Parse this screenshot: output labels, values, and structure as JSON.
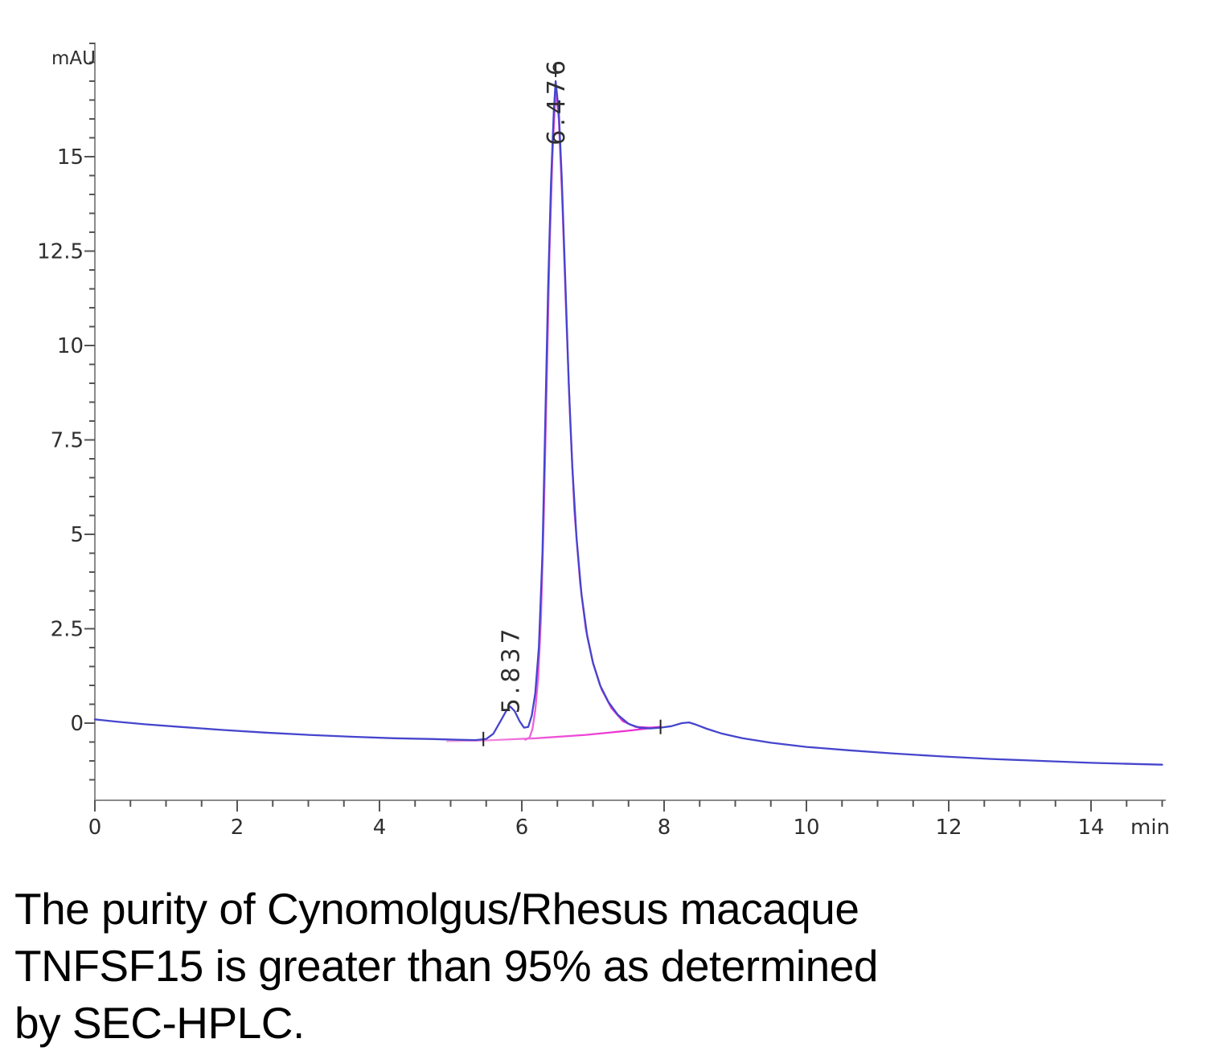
{
  "chart_data": {
    "type": "line",
    "xlabel": "min",
    "ylabel": "mAU",
    "xlim": [
      0,
      15.05
    ],
    "ylim": [
      -2,
      18.1
    ],
    "grid": false,
    "legend": "none",
    "x_major_ticks": [
      0,
      2,
      4,
      6,
      8,
      10,
      12,
      14
    ],
    "x_minor_step": 0.5,
    "y_major_ticks": [
      0,
      2.5,
      5,
      7.5,
      10,
      12.5,
      15
    ],
    "y_minor_step": 0.5,
    "peaks": [
      {
        "label": "5.837",
        "retention_time_min": 5.837,
        "height_mau": 0.44,
        "label_bottom_mau": 0.25
      },
      {
        "label": "6.476",
        "retention_time_min": 6.476,
        "height_mau": 17.0,
        "label_bottom_mau": 15.3
      }
    ],
    "integration_marks": [
      {
        "t_min": 5.46,
        "mau": -0.42
      },
      {
        "t_min": 7.95,
        "mau": -0.1
      },
      {
        "t_min": 6.476,
        "mau": 17.3
      }
    ],
    "series": [
      {
        "name": "uv-absorbance-trace",
        "color": "#4545cd",
        "points": [
          [
            0,
            0.1
          ],
          [
            0.3,
            0.04
          ],
          [
            0.7,
            -0.03
          ],
          [
            1.2,
            -0.1
          ],
          [
            1.8,
            -0.18
          ],
          [
            2.4,
            -0.25
          ],
          [
            3.0,
            -0.31
          ],
          [
            3.6,
            -0.36
          ],
          [
            4.2,
            -0.4
          ],
          [
            4.7,
            -0.42
          ],
          [
            5.1,
            -0.44
          ],
          [
            5.35,
            -0.45
          ],
          [
            5.5,
            -0.42
          ],
          [
            5.6,
            -0.28
          ],
          [
            5.7,
            0.05
          ],
          [
            5.78,
            0.32
          ],
          [
            5.837,
            0.44
          ],
          [
            5.9,
            0.32
          ],
          [
            5.97,
            0.05
          ],
          [
            6.03,
            -0.12
          ],
          [
            6.09,
            -0.1
          ],
          [
            6.14,
            0.2
          ],
          [
            6.19,
            0.8
          ],
          [
            6.24,
            2.0
          ],
          [
            6.29,
            4.5
          ],
          [
            6.33,
            8.0
          ],
          [
            6.37,
            11.5
          ],
          [
            6.41,
            14.3
          ],
          [
            6.45,
            16.2
          ],
          [
            6.476,
            17.0
          ],
          [
            6.52,
            16.2
          ],
          [
            6.56,
            14.5
          ],
          [
            6.61,
            11.8
          ],
          [
            6.66,
            9.0
          ],
          [
            6.71,
            6.8
          ],
          [
            6.77,
            4.9
          ],
          [
            6.84,
            3.4
          ],
          [
            6.92,
            2.3
          ],
          [
            7.0,
            1.6
          ],
          [
            7.1,
            1.0
          ],
          [
            7.22,
            0.55
          ],
          [
            7.35,
            0.22
          ],
          [
            7.5,
            -0.02
          ],
          [
            7.65,
            -0.12
          ],
          [
            7.8,
            -0.14
          ],
          [
            7.95,
            -0.12
          ],
          [
            8.1,
            -0.08
          ],
          [
            8.25,
            0.0
          ],
          [
            8.35,
            0.02
          ],
          [
            8.45,
            -0.04
          ],
          [
            8.6,
            -0.15
          ],
          [
            8.8,
            -0.27
          ],
          [
            9.1,
            -0.4
          ],
          [
            9.5,
            -0.52
          ],
          [
            10.0,
            -0.63
          ],
          [
            10.6,
            -0.72
          ],
          [
            11.2,
            -0.8
          ],
          [
            11.9,
            -0.88
          ],
          [
            12.6,
            -0.95
          ],
          [
            13.3,
            -1.0
          ],
          [
            14.0,
            -1.05
          ],
          [
            14.6,
            -1.08
          ],
          [
            15.0,
            -1.1
          ]
        ]
      },
      {
        "name": "integration-baseline",
        "color": "#e93fd3",
        "points": [
          [
            4.95,
            -0.48
          ],
          [
            5.46,
            -0.46
          ],
          [
            6.2,
            -0.4
          ],
          [
            6.9,
            -0.31
          ],
          [
            7.5,
            -0.2
          ],
          [
            7.95,
            -0.1
          ]
        ]
      },
      {
        "name": "baseline-channel-peak",
        "color": "#e93fd3",
        "points": [
          [
            6.05,
            -0.44
          ],
          [
            6.11,
            -0.38
          ],
          [
            6.15,
            -0.15
          ],
          [
            6.19,
            0.35
          ],
          [
            6.23,
            1.2
          ],
          [
            6.27,
            2.8
          ],
          [
            6.31,
            5.5
          ],
          [
            6.35,
            9.0
          ],
          [
            6.39,
            12.5
          ],
          [
            6.43,
            15.0
          ],
          [
            6.476,
            16.8
          ],
          [
            6.52,
            16.0
          ],
          [
            6.57,
            13.8
          ],
          [
            6.62,
            11.0
          ],
          [
            6.68,
            8.0
          ],
          [
            6.74,
            5.6
          ],
          [
            6.82,
            3.7
          ],
          [
            6.9,
            2.5
          ],
          [
            7.0,
            1.6
          ],
          [
            7.12,
            0.9
          ],
          [
            7.26,
            0.4
          ],
          [
            7.42,
            0.05
          ],
          [
            7.6,
            -0.1
          ],
          [
            7.8,
            -0.12
          ],
          [
            7.95,
            -0.1
          ]
        ]
      }
    ]
  },
  "colors": {
    "trace_blue": "#4545cd",
    "baseline_magenta": "#e822cf",
    "baseline_magenta_mid": "#ee56d8",
    "baseline_magenta_pale": "#f6aee4",
    "axis": "#8a8a8a",
    "tick": "#555555",
    "label": "#2f2f2f",
    "mark": "#222222"
  },
  "caption": {
    "line1": "The purity of Cynomolgus/Rhesus macaque",
    "line2": "TNFSF15 is greater than 95% as determined",
    "line3": "by SEC-HPLC."
  }
}
